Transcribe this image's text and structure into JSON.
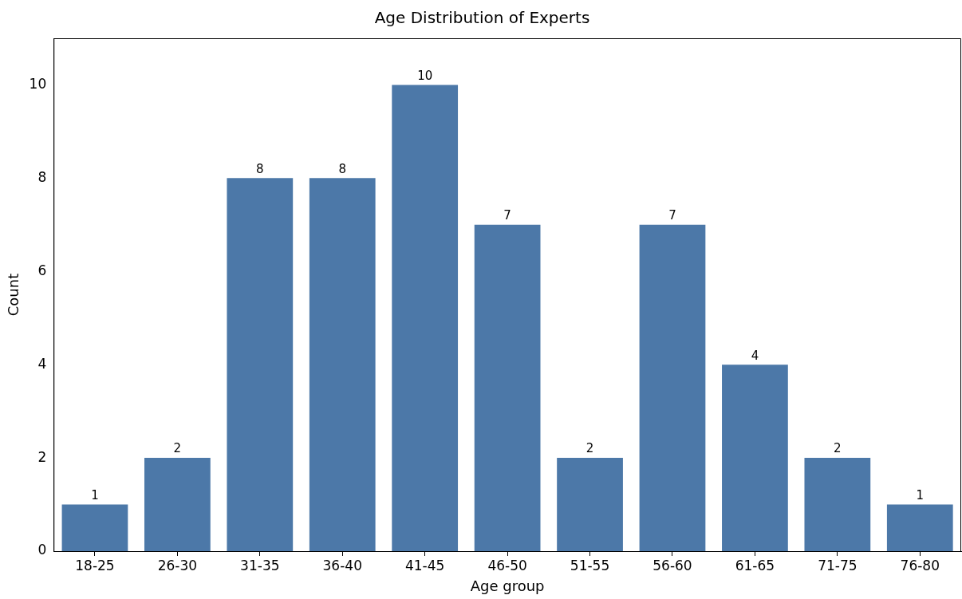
{
  "chart_data": {
    "type": "bar",
    "title": "Age Distribution of Experts",
    "xlabel": "Age group",
    "ylabel": "Count",
    "categories": [
      "18-25",
      "26-30",
      "31-35",
      "36-40",
      "41-45",
      "46-50",
      "51-55",
      "56-60",
      "61-65",
      "71-75",
      "76-80"
    ],
    "values": [
      1,
      2,
      8,
      8,
      10,
      7,
      2,
      7,
      4,
      2,
      1
    ],
    "color": "#4c78a8",
    "ylim": [
      0,
      11
    ],
    "yticks": [
      0,
      2,
      4,
      6,
      8,
      10
    ],
    "grid": false,
    "legend": false,
    "data_labels": true
  }
}
